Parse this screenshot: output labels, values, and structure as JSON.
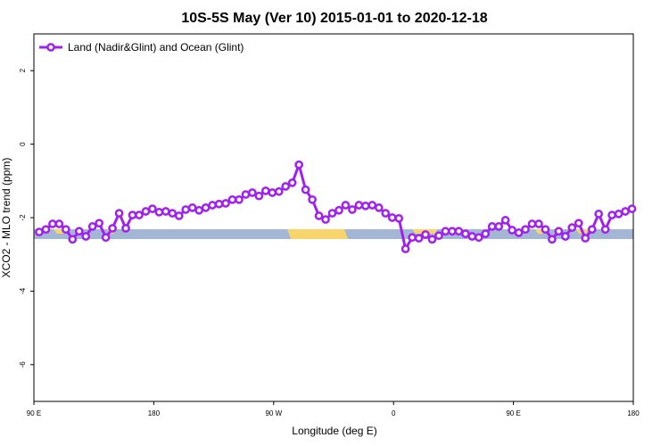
{
  "chart_data": {
    "type": "line",
    "title": "10S-5S May (Ver 10)   2015-01-01 to 2020-12-18",
    "x_label": "Longitude (deg E)",
    "y_label": "XCO2 - MLO trend (ppm)",
    "x": [
      94,
      99,
      104,
      109,
      114,
      119,
      124,
      129,
      134,
      139,
      144,
      149,
      154,
      159,
      164,
      169,
      174,
      179,
      184,
      189,
      194,
      199,
      204,
      209,
      214,
      219,
      224,
      229,
      234,
      239,
      244,
      249,
      254,
      259,
      264,
      269,
      274,
      279,
      284,
      289,
      294,
      299,
      304,
      309,
      314,
      319,
      324,
      329,
      334,
      339,
      344,
      349,
      354,
      359,
      364,
      369,
      374,
      379,
      384,
      389,
      394,
      399,
      404,
      409,
      414,
      419,
      424,
      429,
      434,
      439,
      444,
      449,
      454,
      459,
      464,
      469,
      474,
      479,
      484,
      489,
      494,
      499,
      504,
      509,
      514,
      519,
      524,
      529,
      534,
      539
    ],
    "series": [
      {
        "name": "Land (Nadir&Glint) and Ocean (Glint)",
        "color": "#a020f0",
        "values": [
          -2.39,
          -2.32,
          -2.17,
          -2.17,
          -2.32,
          -2.59,
          -2.37,
          -2.51,
          -2.24,
          -2.15,
          -2.54,
          -2.29,
          -1.88,
          -2.29,
          -1.93,
          -1.93,
          -1.83,
          -1.76,
          -1.85,
          -1.83,
          -1.88,
          -1.95,
          -1.78,
          -1.73,
          -1.8,
          -1.73,
          -1.66,
          -1.63,
          -1.61,
          -1.51,
          -1.51,
          -1.37,
          -1.32,
          -1.41,
          -1.27,
          -1.32,
          -1.29,
          -1.15,
          -1.05,
          -0.56,
          -1.24,
          -1.51,
          -1.95,
          -2.05,
          -1.88,
          -1.8,
          -1.66,
          -1.78,
          -1.66,
          -1.68,
          -1.66,
          -1.73,
          -1.88,
          -2.0,
          -2.02,
          -2.85,
          -2.54,
          -2.56,
          -2.46,
          -2.59,
          -2.49,
          -2.37,
          -2.37,
          -2.37,
          -2.44,
          -2.51,
          -2.54,
          -2.44,
          -2.24,
          -2.24,
          -2.07,
          -2.34,
          -2.41,
          -2.32,
          -2.17,
          -2.17,
          -2.32,
          -2.59,
          -2.37,
          -2.51,
          -2.27,
          -2.15,
          -2.56,
          -2.32,
          -1.9,
          -2.32,
          -1.93,
          -1.9,
          -1.83,
          -1.76
        ]
      }
    ],
    "xlim": [
      90,
      540
    ],
    "xticks": [
      {
        "value": 90,
        "label": "90 E"
      },
      {
        "value": 180,
        "label": "180"
      },
      {
        "value": 270,
        "label": "90 W"
      },
      {
        "value": 360,
        "label": "0"
      },
      {
        "value": 450,
        "label": "90 E"
      },
      {
        "value": 540,
        "label": "180"
      }
    ],
    "ylim": [
      -7,
      3
    ],
    "yticks": [
      -6,
      -4,
      -2,
      0,
      2
    ],
    "legend": "top-left"
  }
}
